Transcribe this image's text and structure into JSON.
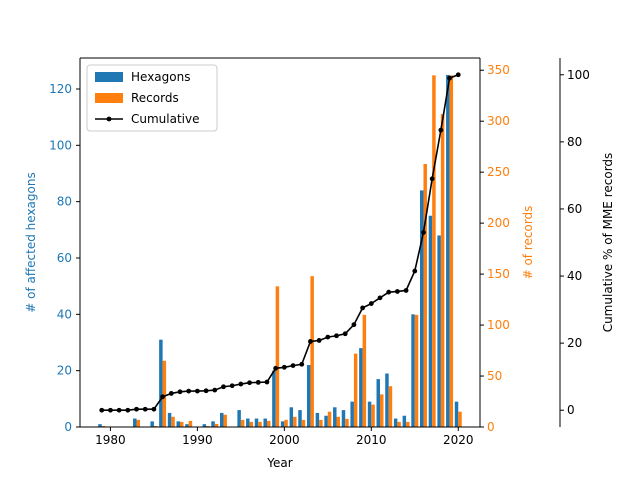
{
  "chart_data": {
    "type": "bar",
    "title": "",
    "xlabel": "Year",
    "xlim": [
      1976.5,
      2022.5
    ],
    "xticks": [
      1980,
      1990,
      2000,
      2010,
      2020
    ],
    "grid": false,
    "legend_position": "top-left",
    "axes": {
      "left": {
        "label": "# of affected hexagons",
        "color": "#1f77b4",
        "ylim": [
          0,
          131
        ],
        "ticks": [
          0,
          20,
          40,
          60,
          80,
          100,
          120
        ]
      },
      "right": {
        "label": "# of records",
        "color": "#ff7f0e",
        "ylim": [
          0,
          362
        ],
        "ticks": [
          0,
          50,
          100,
          150,
          200,
          250,
          300,
          350
        ]
      },
      "cumulative": {
        "label": "Cumulative % of MME records",
        "color": "#000000",
        "ylim": [
          -5,
          105
        ],
        "ticks": [
          0,
          20,
          40,
          60,
          80,
          100
        ]
      }
    },
    "series": [
      {
        "name": "Hexagons",
        "type": "bar",
        "axis": "left",
        "color": "#1f77b4",
        "x": [
          1979,
          1983,
          1985,
          1986,
          1987,
          1988,
          1989,
          1991,
          1992,
          1993,
          1995,
          1996,
          1997,
          1998,
          1999,
          2000,
          2001,
          2002,
          2003,
          2004,
          2005,
          2006,
          2007,
          2008,
          2009,
          2010,
          2011,
          2012,
          2013,
          2014,
          2015,
          2016,
          2017,
          2018,
          2019,
          2020
        ],
        "values": [
          1,
          3,
          2,
          31,
          5,
          2,
          1,
          1,
          2,
          5,
          6,
          3,
          3,
          3,
          20,
          2,
          7,
          6,
          22,
          5,
          4,
          7,
          6,
          9,
          28,
          9,
          17,
          19,
          3,
          4,
          40,
          84,
          75,
          68,
          125,
          9
        ]
      },
      {
        "name": "Records",
        "type": "bar",
        "axis": "right",
        "color": "#ff7f0e",
        "x": [
          1979,
          1983,
          1985,
          1986,
          1987,
          1988,
          1989,
          1991,
          1992,
          1993,
          1995,
          1996,
          1997,
          1998,
          1999,
          2000,
          2001,
          2002,
          2003,
          2004,
          2005,
          2006,
          2007,
          2008,
          2009,
          2010,
          2011,
          2012,
          2013,
          2014,
          2015,
          2016,
          2017,
          2018,
          2019,
          2020
        ],
        "values": [
          1,
          7,
          1,
          65,
          10,
          5,
          6,
          1,
          3,
          12,
          7,
          5,
          5,
          6,
          138,
          7,
          10,
          7,
          148,
          7,
          15,
          10,
          8,
          72,
          110,
          22,
          32,
          40,
          5,
          5,
          110,
          258,
          345,
          307,
          345,
          15
        ]
      },
      {
        "name": "Cumulative",
        "type": "line",
        "axis": "cumulative",
        "color": "#000000",
        "x": [
          1979,
          1980,
          1981,
          1982,
          1983,
          1984,
          1985,
          1986,
          1987,
          1988,
          1989,
          1990,
          1991,
          1992,
          1993,
          1994,
          1995,
          1996,
          1997,
          1998,
          1999,
          2000,
          2001,
          2002,
          2003,
          2004,
          2005,
          2006,
          2007,
          2008,
          2009,
          2010,
          2011,
          2012,
          2013,
          2014,
          2015,
          2016,
          2017,
          2018,
          2019,
          2020
        ],
        "values": [
          0,
          0,
          0,
          0,
          0.3,
          0.3,
          0.3,
          4,
          5,
          5.5,
          5.7,
          5.7,
          5.8,
          6,
          7,
          7.3,
          7.8,
          8.2,
          8.3,
          8.4,
          12.5,
          12.8,
          13.3,
          13.7,
          20.5,
          20.8,
          21.8,
          22.2,
          22.8,
          25.5,
          30.5,
          31.8,
          33.5,
          35.2,
          35.4,
          35.7,
          41.5,
          53,
          69,
          83.5,
          99,
          100
        ]
      }
    ]
  }
}
